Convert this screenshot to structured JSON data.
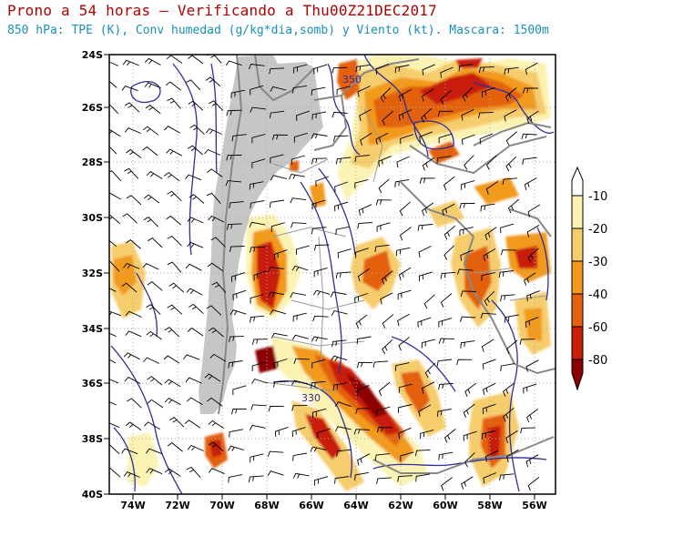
{
  "title": "Prono a 54 horas — Verificando a Thu00Z21DEC2017",
  "subtitle": "850 hPa: TPE (K), Conv humedad (g/kg*dia,somb) y Viento (kt). Mascara: 1500m",
  "lat_labels": [
    "24S",
    "26S",
    "28S",
    "30S",
    "32S",
    "34S",
    "36S",
    "38S",
    "40S"
  ],
  "lon_labels": [
    "74W",
    "72W",
    "70W",
    "68W",
    "66W",
    "64W",
    "62W",
    "60W",
    "58W",
    "56W"
  ],
  "contour_labels": [
    "350",
    "330"
  ],
  "colorbar": {
    "labels": [
      "-10",
      "-20",
      "-30",
      "-40",
      "-60",
      "-80"
    ],
    "colors": [
      "#fbf3b4",
      "#f6cd6c",
      "#f29a1d",
      "#e3610f",
      "#c81e07",
      "#8b0000"
    ]
  },
  "colors": {
    "title": "#b00000",
    "subtitle": "#1a8fb8",
    "mask": "#c6c6c6",
    "contour": "#2e2e9a",
    "borders": "#888888"
  }
}
